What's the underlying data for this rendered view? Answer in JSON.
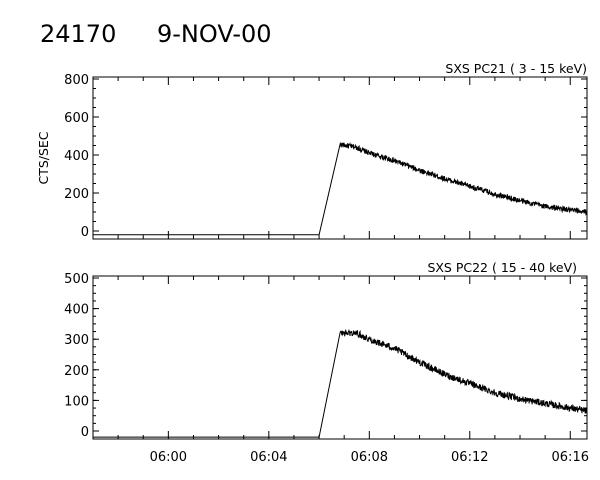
{
  "header": {
    "id_label": "24170",
    "date_label": "9-NOV-00"
  },
  "chart_data": [
    {
      "type": "line",
      "title": "SXS PC21  (  3 - 15 keV)",
      "xlabel": "",
      "ylabel": "CTS/SEC",
      "xlim": [
        "05:57",
        "06:16:40"
      ],
      "ylim": [
        0,
        800
      ],
      "yticks": [
        0,
        200,
        400,
        600,
        800
      ],
      "grid": false,
      "series": [
        {
          "x": [
            "05:57",
            "06:06",
            "06:06:50",
            "06:07:30",
            "06:08",
            "06:09",
            "06:10",
            "06:11",
            "06:12",
            "06:13",
            "06:14",
            "06:15",
            "06:16",
            "06:16:40"
          ],
          "values": [
            -20,
            -20,
            455,
            440,
            410,
            370,
            320,
            275,
            235,
            195,
            160,
            130,
            110,
            100
          ]
        }
      ]
    },
    {
      "type": "line",
      "title": "SXS PC22  ( 15 - 40 keV)",
      "xlabel": "",
      "ylabel": "",
      "xlim": [
        "05:57",
        "06:16:40"
      ],
      "ylim": [
        0,
        500
      ],
      "yticks": [
        0,
        100,
        200,
        300,
        400,
        500
      ],
      "xticks": [
        "06:00",
        "06:04",
        "06:08",
        "06:12",
        "06:16"
      ],
      "grid": false,
      "series": [
        {
          "x": [
            "05:57",
            "06:06",
            "06:06:50",
            "06:07:30",
            "06:08",
            "06:09",
            "06:10",
            "06:11",
            "06:12",
            "06:13",
            "06:14",
            "06:15",
            "06:16",
            "06:16:40"
          ],
          "values": [
            -20,
            -20,
            320,
            320,
            300,
            270,
            225,
            185,
            155,
            125,
            105,
            90,
            75,
            65
          ]
        }
      ]
    }
  ]
}
